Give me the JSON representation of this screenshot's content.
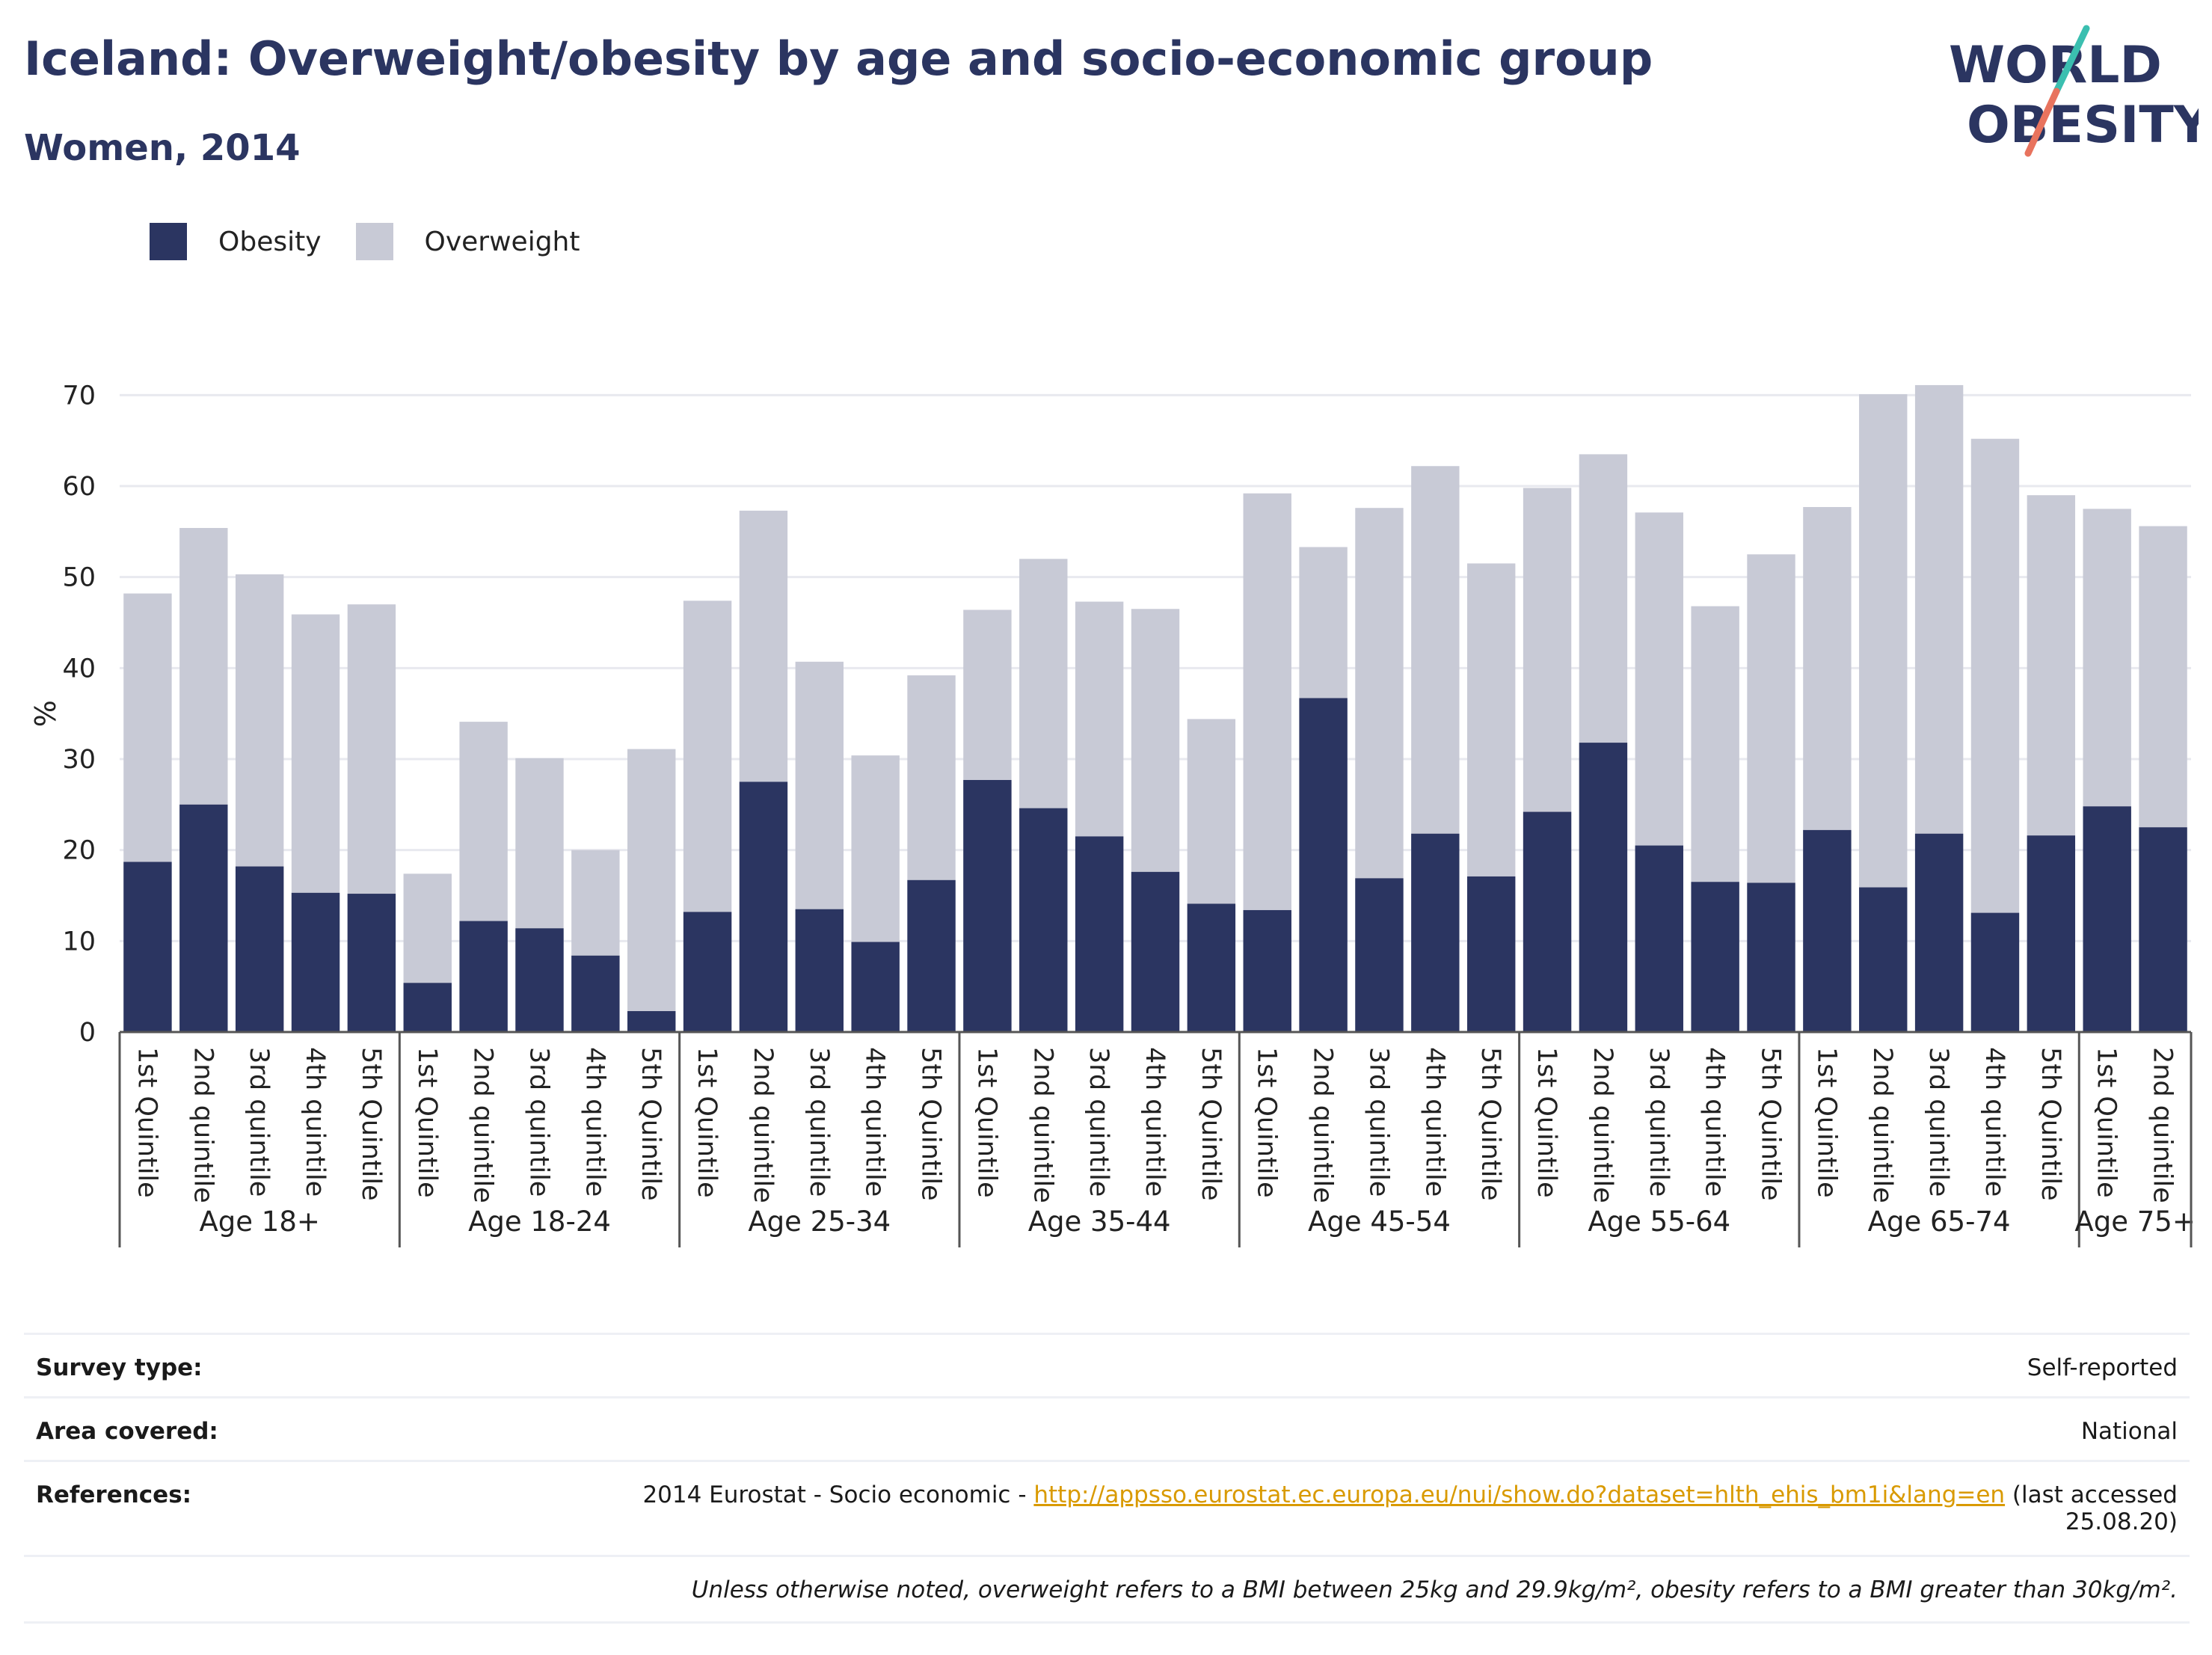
{
  "header": {
    "title": "Iceland: Overweight/obesity by age and socio-economic group",
    "subtitle": "Women, 2014"
  },
  "logo": {
    "line1": "WORLD",
    "line2": "OBESITY",
    "name": "world-obesity-logo"
  },
  "colors": {
    "obesity": "#2b3561",
    "overweight": "#c8cad6",
    "link": "#d99a00",
    "logo_teal": "#3bbfb0",
    "logo_coral": "#e8735e"
  },
  "legend": {
    "obesity_label": "Obesity",
    "overweight_label": "Overweight"
  },
  "chart_data": {
    "type": "bar",
    "stacked": true,
    "ylabel": "%",
    "ylim": [
      0,
      72
    ],
    "yticks": [
      0,
      10,
      20,
      30,
      40,
      50,
      60,
      70
    ],
    "grid": true,
    "legend_position": "top-left",
    "groups": [
      {
        "label": "Age 18+",
        "categories": [
          "1st Quintile",
          "2nd quintile",
          "3rd quintile",
          "4th quintile",
          "5th Quintile"
        ],
        "obesity": [
          18.7,
          25.0,
          18.2,
          15.3,
          15.2
        ],
        "total": [
          48.2,
          55.4,
          50.3,
          45.9,
          47.0
        ]
      },
      {
        "label": "Age 18-24",
        "categories": [
          "1st Quintile",
          "2nd quintile",
          "3rd quintile",
          "4th quintile",
          "5th Quintile"
        ],
        "obesity": [
          5.4,
          12.2,
          11.4,
          8.4,
          2.3
        ],
        "total": [
          17.4,
          34.1,
          30.1,
          20.0,
          31.1
        ]
      },
      {
        "label": "Age 25-34",
        "categories": [
          "1st Quintile",
          "2nd quintile",
          "3rd quintile",
          "4th quintile",
          "5th Quintile"
        ],
        "obesity": [
          13.2,
          27.5,
          13.5,
          9.9,
          16.7
        ],
        "total": [
          47.4,
          57.3,
          40.7,
          30.4,
          39.2
        ]
      },
      {
        "label": "Age 35-44",
        "categories": [
          "1st Quintile",
          "2nd quintile",
          "3rd quintile",
          "4th quintile",
          "5th Quintile"
        ],
        "obesity": [
          27.7,
          24.6,
          21.5,
          17.6,
          14.1
        ],
        "total": [
          46.4,
          52.0,
          47.3,
          46.5,
          34.4
        ]
      },
      {
        "label": "Age 45-54",
        "categories": [
          "1st Quintile",
          "2nd quintile",
          "3rd quintile",
          "4th quintile",
          "5th Quintile"
        ],
        "obesity": [
          13.4,
          36.7,
          16.9,
          21.8,
          17.1
        ],
        "total": [
          59.2,
          53.3,
          57.6,
          62.2,
          51.5
        ]
      },
      {
        "label": "Age 55-64",
        "categories": [
          "1st Quintile",
          "2nd quintile",
          "3rd quintile",
          "4th quintile",
          "5th Quintile"
        ],
        "obesity": [
          24.2,
          31.8,
          20.5,
          16.5,
          16.4
        ],
        "total": [
          59.8,
          63.5,
          57.1,
          46.8,
          52.5
        ]
      },
      {
        "label": "Age 65-74",
        "categories": [
          "1st Quintile",
          "2nd quintile",
          "3rd quintile",
          "4th quintile",
          "5th Quintile"
        ],
        "obesity": [
          22.2,
          15.9,
          21.8,
          13.1,
          21.6
        ],
        "total": [
          57.7,
          70.1,
          71.1,
          65.2,
          59.0
        ]
      },
      {
        "label": "Age 75+",
        "categories": [
          "1st Quintile",
          "2nd quintile"
        ],
        "obesity": [
          24.8,
          22.5
        ],
        "total": [
          57.5,
          55.6
        ]
      }
    ]
  },
  "info": {
    "survey_type_label": "Survey type:",
    "survey_type_value": "Self-reported",
    "area_label": "Area covered:",
    "area_value": "National",
    "references_label": "References:",
    "references_prefix": "2014 Eurostat - Socio economic - ",
    "references_link": "http://appsso.eurostat.ec.europa.eu/nui/show.do?dataset=hlth_ehis_bm1i&lang=en",
    "references_suffix": " (last accessed",
    "references_date": "25.08.20)",
    "note": "Unless otherwise noted, overweight refers to a BMI between 25kg and 29.9kg/m², obesity refers to a BMI greater than 30kg/m²."
  }
}
